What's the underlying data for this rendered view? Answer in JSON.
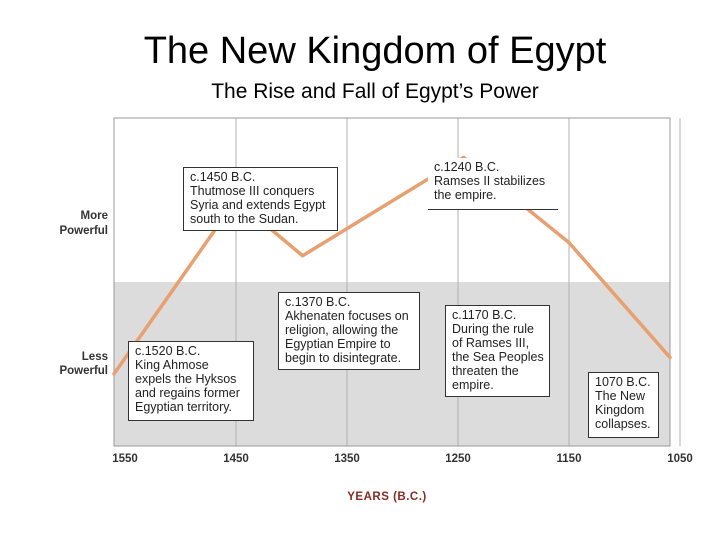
{
  "title": "The New Kingdom of Egypt",
  "subtitle": "The Rise and Fall of Egypt’s Power",
  "chart_data": {
    "type": "line",
    "xlabel": "YEARS (B.C.)",
    "x_ticks": [
      "1550",
      "1450",
      "1350",
      "1250",
      "1150",
      "1050"
    ],
    "xlim": [
      1550,
      1050
    ],
    "y_labels": [
      {
        "line1": "More",
        "line2": "Powerful"
      },
      {
        "line1": "Less",
        "line2": "Powerful"
      }
    ],
    "x": [
      1560,
      1450,
      1390,
      1245,
      1150,
      1050
    ],
    "y": [
      0.22,
      0.75,
      0.58,
      0.88,
      0.62,
      0.27
    ],
    "series_color": "#e8a070",
    "background_colors": {
      "upper": "#ffffff",
      "lower": "#dcdcdc"
    },
    "annotations": [
      {
        "date": "c.1450 B.C.",
        "text": "Thutmose III conquers Syria and extends Egypt south to the Sudan."
      },
      {
        "date": "c.1240 B.C.",
        "text": "Ramses II stabilizes the empire."
      },
      {
        "date": "c.1370 B.C.",
        "text": "Akhenaten focuses on religion, allowing the Egyptian Empire to begin to disintegrate."
      },
      {
        "date": "c.1170 B.C.",
        "text": "During the rule of Ramses III, the Sea Peoples threaten the empire."
      },
      {
        "date": "c.1520 B.C.",
        "text": "King Ahmose expels the Hyksos and regains former Egyptian territory."
      },
      {
        "date": "1070 B.C.",
        "text": "The New Kingdom collapses."
      }
    ]
  }
}
